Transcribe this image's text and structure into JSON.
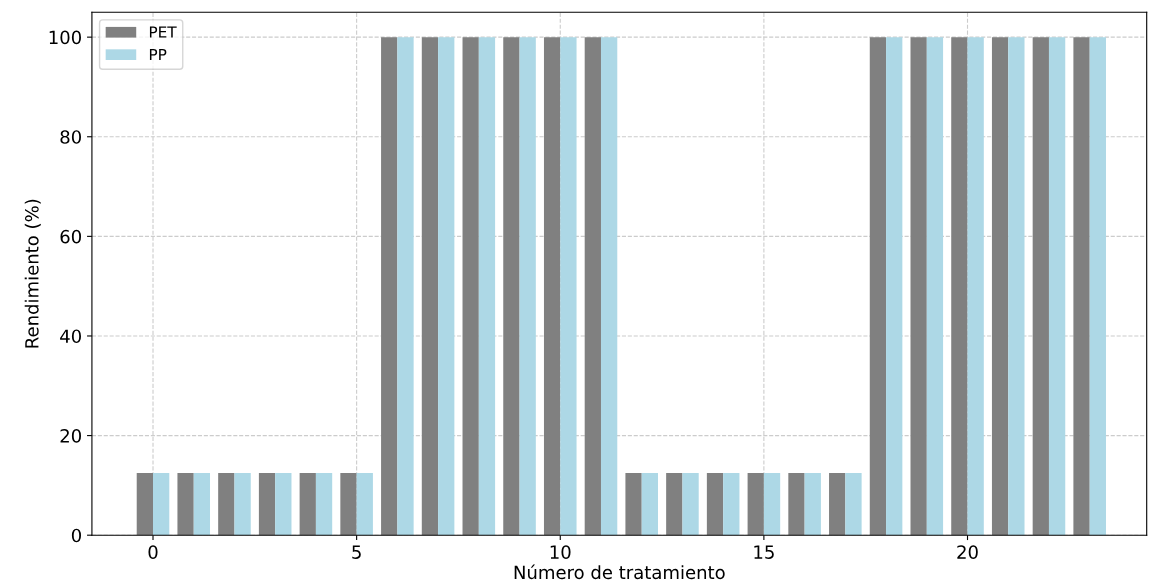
{
  "chart_data": {
    "type": "bar",
    "xlabel": "Número de tratamiento",
    "ylabel": "Rendimiento (%)",
    "x": [
      0,
      1,
      2,
      3,
      4,
      5,
      6,
      7,
      8,
      9,
      10,
      11,
      12,
      13,
      14,
      15,
      16,
      17,
      18,
      19,
      20,
      21,
      22,
      23
    ],
    "series": [
      {
        "name": "PET",
        "color": "#808080",
        "values": [
          12.5,
          12.5,
          12.5,
          12.5,
          12.5,
          12.5,
          100,
          100,
          100,
          100,
          100,
          100,
          12.5,
          12.5,
          12.5,
          12.5,
          12.5,
          12.5,
          100,
          100,
          100,
          100,
          100,
          100
        ]
      },
      {
        "name": "PP",
        "color": "#add8e6",
        "values": [
          12.5,
          12.5,
          12.5,
          12.5,
          12.5,
          12.5,
          100,
          100,
          100,
          100,
          100,
          100,
          12.5,
          12.5,
          12.5,
          12.5,
          12.5,
          12.5,
          100,
          100,
          100,
          100,
          100,
          100
        ]
      }
    ],
    "xlim": [
      -1.5,
      24.4
    ],
    "xticks": [
      0,
      5,
      10,
      15,
      20
    ],
    "ylim": [
      0,
      105
    ],
    "yticks": [
      0,
      20,
      40,
      60,
      80,
      100
    ],
    "grid": true,
    "legend": "top left"
  }
}
